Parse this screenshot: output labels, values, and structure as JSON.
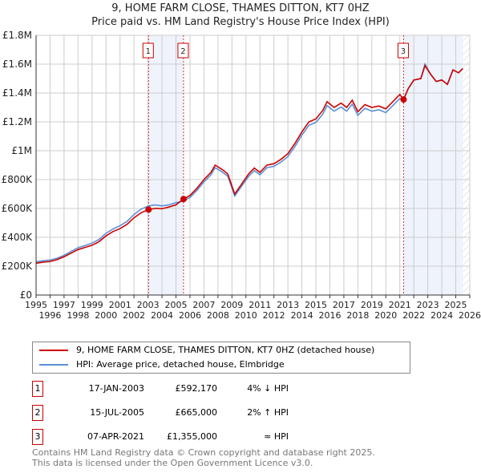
{
  "chart_data": {
    "type": "line",
    "title": "9, HOME FARM CLOSE, THAMES DITTON, KT7 0HZ",
    "subtitle": "Price paid vs. HM Land Registry's House Price Index (HPI)",
    "xlim": [
      1995,
      2026
    ],
    "ylim": [
      0,
      1800000
    ],
    "yticks": [
      {
        "v": 0,
        "label": "£0"
      },
      {
        "v": 200000,
        "label": "£200K"
      },
      {
        "v": 400000,
        "label": "£400K"
      },
      {
        "v": 600000,
        "label": "£600K"
      },
      {
        "v": 800000,
        "label": "£800K"
      },
      {
        "v": 1000000,
        "label": "£1M"
      },
      {
        "v": 1200000,
        "label": "£1.2M"
      },
      {
        "v": 1400000,
        "label": "£1.4M"
      },
      {
        "v": 1600000,
        "label": "£1.6M"
      },
      {
        "v": 1800000,
        "label": "£1.8M"
      }
    ],
    "xticks": [
      "1995",
      "1996",
      "1997",
      "1998",
      "1999",
      "2000",
      "2001",
      "2002",
      "2003",
      "2004",
      "2005",
      "2006",
      "2007",
      "2008",
      "2009",
      "2010",
      "2011",
      "2012",
      "2013",
      "2014",
      "2015",
      "2016",
      "2017",
      "2018",
      "2019",
      "2020",
      "2021",
      "2022",
      "2023",
      "2024",
      "2025",
      "2026"
    ],
    "grid": true,
    "shaded_periods": [
      [
        2003.04,
        2005.54
      ],
      [
        2021.27,
        2025.5
      ]
    ],
    "hatched_from": 2025.5,
    "series": [
      {
        "name": "9, HOME FARM CLOSE, THAMES DITTON, KT7 0HZ (detached house)",
        "color": "#cc0000",
        "x": [
          1995,
          1995.5,
          1996,
          1996.5,
          1997,
          1997.5,
          1998,
          1998.5,
          1999,
          1999.5,
          2000,
          2000.5,
          2001,
          2001.5,
          2002,
          2002.5,
          2003.04,
          2003.5,
          2004,
          2004.5,
          2005,
          2005.54,
          2006,
          2006.5,
          2007,
          2007.5,
          2007.8,
          2008.3,
          2008.7,
          2009.2,
          2009.7,
          2010.2,
          2010.6,
          2011,
          2011.5,
          2012,
          2012.5,
          2013,
          2013.5,
          2014,
          2014.5,
          2015,
          2015.5,
          2015.8,
          2016.3,
          2016.8,
          2017.2,
          2017.6,
          2018,
          2018.5,
          2019,
          2019.5,
          2020,
          2020.5,
          2021,
          2021.27,
          2021.6,
          2022,
          2022.5,
          2022.8,
          2023.2,
          2023.6,
          2024,
          2024.4,
          2024.8,
          2025.2,
          2025.5
        ],
        "y": [
          220000,
          228000,
          232000,
          245000,
          265000,
          290000,
          315000,
          330000,
          345000,
          370000,
          410000,
          440000,
          460000,
          490000,
          535000,
          570000,
          592170,
          600000,
          598000,
          610000,
          625000,
          665000,
          690000,
          740000,
          800000,
          850000,
          900000,
          870000,
          840000,
          700000,
          770000,
          840000,
          880000,
          850000,
          900000,
          910000,
          940000,
          980000,
          1050000,
          1130000,
          1200000,
          1220000,
          1280000,
          1340000,
          1300000,
          1330000,
          1300000,
          1350000,
          1270000,
          1320000,
          1300000,
          1310000,
          1290000,
          1340000,
          1390000,
          1355000,
          1430000,
          1490000,
          1500000,
          1590000,
          1530000,
          1480000,
          1490000,
          1460000,
          1560000,
          1540000,
          1570000
        ]
      },
      {
        "name": "HPI: Average price, detached house, Elmbridge",
        "color": "#5b8fd6",
        "x": [
          1995,
          1995.5,
          1996,
          1996.5,
          1997,
          1997.5,
          1998,
          1998.5,
          1999,
          1999.5,
          2000,
          2000.5,
          2001,
          2001.5,
          2002,
          2002.5,
          2003.04,
          2003.5,
          2004,
          2004.5,
          2005,
          2005.54,
          2006,
          2006.5,
          2007,
          2007.5,
          2007.8,
          2008.3,
          2008.7,
          2009.2,
          2009.7,
          2010.2,
          2010.6,
          2011,
          2011.5,
          2012,
          2012.5,
          2013,
          2013.5,
          2014,
          2014.5,
          2015,
          2015.5,
          2015.8,
          2016.3,
          2016.8,
          2017.2,
          2017.6,
          2018,
          2018.5,
          2019,
          2019.5,
          2020,
          2020.5,
          2021,
          2021.27,
          2021.6,
          2022,
          2022.5,
          2022.8,
          2023.2,
          2023.6,
          2024,
          2024.4,
          2024.8,
          2025.2,
          2025.5
        ],
        "y": [
          230000,
          238000,
          242000,
          255000,
          275000,
          302000,
          328000,
          343000,
          360000,
          385000,
          428000,
          458000,
          480000,
          510000,
          558000,
          595000,
          617000,
          625000,
          618000,
          625000,
          640000,
          652000,
          676000,
          725000,
          784000,
          833000,
          882000,
          853000,
          824000,
          686000,
          755000,
          823000,
          862000,
          833000,
          882000,
          892000,
          921000,
          960000,
          1029000,
          1108000,
          1176000,
          1196000,
          1254000,
          1313000,
          1274000,
          1303000,
          1274000,
          1323000,
          1245000,
          1294000,
          1274000,
          1284000,
          1264000,
          1313000,
          1362000,
          1355000,
          1430000,
          1490000,
          1500000,
          1600000,
          1530000,
          1480000,
          1490000,
          1460000,
          1560000,
          1540000,
          1570000
        ]
      }
    ],
    "sales": [
      {
        "n": "1",
        "x": 2003.04,
        "y": 592170
      },
      {
        "n": "2",
        "x": 2005.54,
        "y": 665000
      },
      {
        "n": "3",
        "x": 2021.27,
        "y": 1355000
      }
    ]
  },
  "legend": {
    "items": [
      "9, HOME FARM CLOSE, THAMES DITTON, KT7 0HZ (detached house)",
      "HPI: Average price, detached house, Elmbridge"
    ]
  },
  "transactions": [
    {
      "n": "1",
      "date": "17-JAN-2003",
      "price": "£592,170",
      "hpi": "4% ↓ HPI"
    },
    {
      "n": "2",
      "date": "15-JUL-2005",
      "price": "£665,000",
      "hpi": "2% ↑ HPI"
    },
    {
      "n": "3",
      "date": "07-APR-2021",
      "price": "£1,355,000",
      "hpi": "≈ HPI"
    }
  ],
  "footer": {
    "line1": "Contains HM Land Registry data © Crown copyright and database right 2025.",
    "line2": "This data is licensed under the Open Government Licence v3.0."
  }
}
